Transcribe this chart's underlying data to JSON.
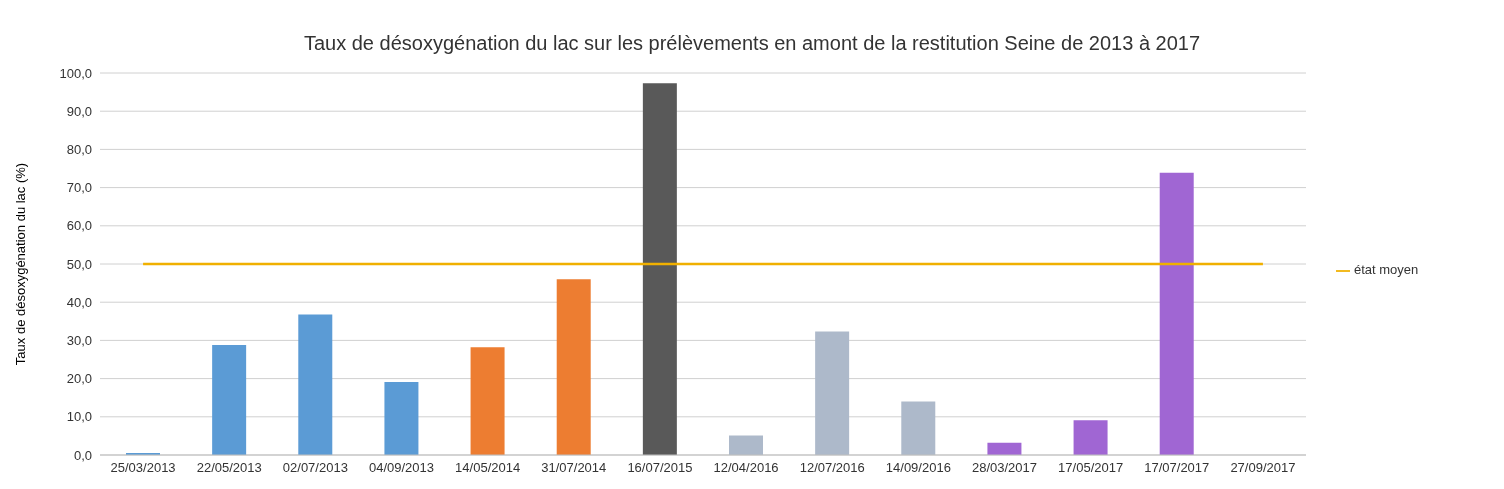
{
  "chart_data": {
    "type": "bar",
    "title": "Taux de désoxygénation du lac sur les prélèvements en amont de la restitution Seine de 2013 à 2017",
    "ylabel": "Taux de désoxygénation du lac  (%)",
    "categories": [
      "25/03/2013",
      "22/05/2013",
      "02/07/2013",
      "04/09/2013",
      "14/05/2014",
      "31/07/2014",
      "16/07/2015",
      "12/04/2016",
      "12/07/2016",
      "14/09/2016",
      "28/03/2017",
      "17/05/2017",
      "17/07/2017",
      "27/09/2017"
    ],
    "series": [
      {
        "values": [
          0.5,
          28.8,
          36.8,
          19.1,
          28.2,
          46.0,
          97.3,
          5.1,
          32.3,
          14.0,
          3.2,
          9.1,
          73.9,
          null
        ],
        "colors": [
          "#5b9bd5",
          "#5b9bd5",
          "#5b9bd5",
          "#5b9bd5",
          "#ed7d31",
          "#ed7d31",
          "#595959",
          "#adb9ca",
          "#adb9ca",
          "#adb9ca",
          "#a066d3",
          "#a066d3",
          "#a066d3",
          "#a066d3"
        ]
      },
      {
        "type": "line",
        "name": "état moyen",
        "color": "#f0b000",
        "values": [
          50,
          50,
          50,
          50,
          50,
          50,
          50,
          50,
          50,
          50,
          50,
          50,
          50,
          50
        ]
      }
    ],
    "ylim": [
      0,
      100
    ],
    "yticks": [
      {
        "value": 0,
        "label": "0,0"
      },
      {
        "value": 10,
        "label": "10,0"
      },
      {
        "value": 20,
        "label": "20,0"
      },
      {
        "value": 30,
        "label": "30,0"
      },
      {
        "value": 40,
        "label": "40,0"
      },
      {
        "value": 50,
        "label": "50,0"
      },
      {
        "value": 60,
        "label": "60,0"
      },
      {
        "value": 70,
        "label": "70,0"
      },
      {
        "value": 80,
        "label": "80,0"
      },
      {
        "value": 90,
        "label": "90,0"
      },
      {
        "value": 100,
        "label": "100,0"
      }
    ],
    "grid": "y",
    "legend": "right",
    "marker": "none"
  }
}
